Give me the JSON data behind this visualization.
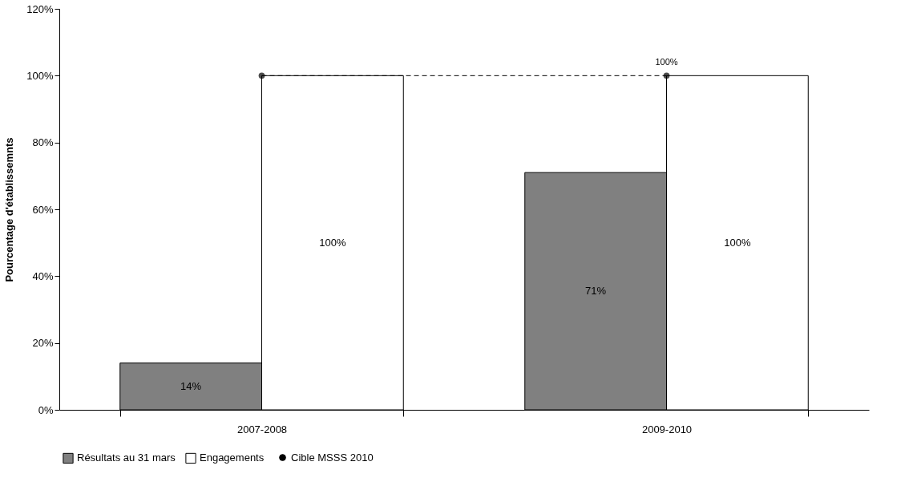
{
  "chart_data": {
    "type": "bar",
    "ylabel": "Pourcentage d'établissemnts",
    "categories": [
      "2007-2008",
      "2009-2010"
    ],
    "series": [
      {
        "name": "Résultats au 31 mars",
        "color": "#808080",
        "values": [
          14,
          71
        ],
        "value_labels": [
          "14%",
          "71%"
        ]
      },
      {
        "name": "Engagements",
        "color": "#ffffff",
        "values": [
          100,
          100
        ],
        "value_labels": [
          "100%",
          "100%"
        ]
      },
      {
        "name": "Cible MSSS 2010",
        "type": "line",
        "color": "#000000",
        "values": [
          100,
          100
        ],
        "value_labels": [
          null,
          "100%"
        ],
        "marker": "circle",
        "line_style": "dashed"
      }
    ],
    "ylim": [
      0,
      120
    ],
    "yticks": [
      {
        "value": 0,
        "label": "0%"
      },
      {
        "value": 20,
        "label": "20%"
      },
      {
        "value": 40,
        "label": "40%"
      },
      {
        "value": 60,
        "label": "60%"
      },
      {
        "value": 80,
        "label": "80%"
      },
      {
        "value": 100,
        "label": "100%"
      },
      {
        "value": 120,
        "label": "120%"
      }
    ],
    "grid": false,
    "legend": "bottom"
  }
}
